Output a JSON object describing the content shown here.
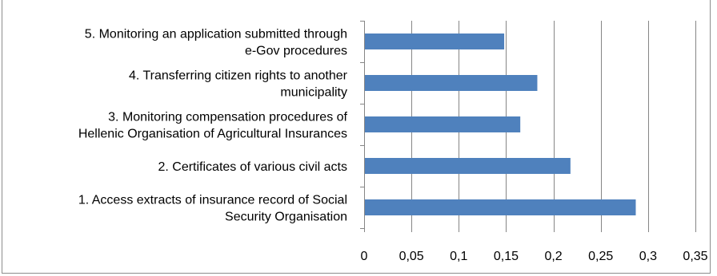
{
  "chart_data": {
    "type": "bar",
    "orientation": "horizontal",
    "categories": [
      "1. Access extracts of insurance record of Social Security Organisation",
      "2. Certificates of various civil acts",
      "3. Monitoring compensation procedures of Hellenic Organisation of Agricultural Insurances",
      "4. Transferring citizen rights to another municipality",
      "5. Monitoring an application submitted through e-Gov procedures"
    ],
    "category_label_lines": [
      [
        "1. Access extracts of insurance record of Social",
        "Security Organisation"
      ],
      [
        "2. Certificates of various civil acts"
      ],
      [
        "3. Monitoring compensation procedures of",
        "Hellenic Organisation of Agricultural Insurances"
      ],
      [
        "4. Transferring citizen rights to another",
        "municipality"
      ],
      [
        "5. Monitoring an application submitted through",
        "e-Gov procedures"
      ]
    ],
    "values": [
      0.287,
      0.218,
      0.165,
      0.183,
      0.148
    ],
    "xlim": [
      0,
      0.35
    ],
    "xticks": [
      "0",
      "0,05",
      "0,1",
      "0,15",
      "0,2",
      "0,25",
      "0,3",
      "0,35"
    ],
    "xtick_values": [
      0,
      0.05,
      0.1,
      0.15,
      0.2,
      0.25,
      0.3,
      0.35
    ],
    "grid": "vertical",
    "bar_color": "#4f81bd",
    "grid_color": "#868686",
    "title": "",
    "xlabel": "",
    "ylabel": ""
  }
}
